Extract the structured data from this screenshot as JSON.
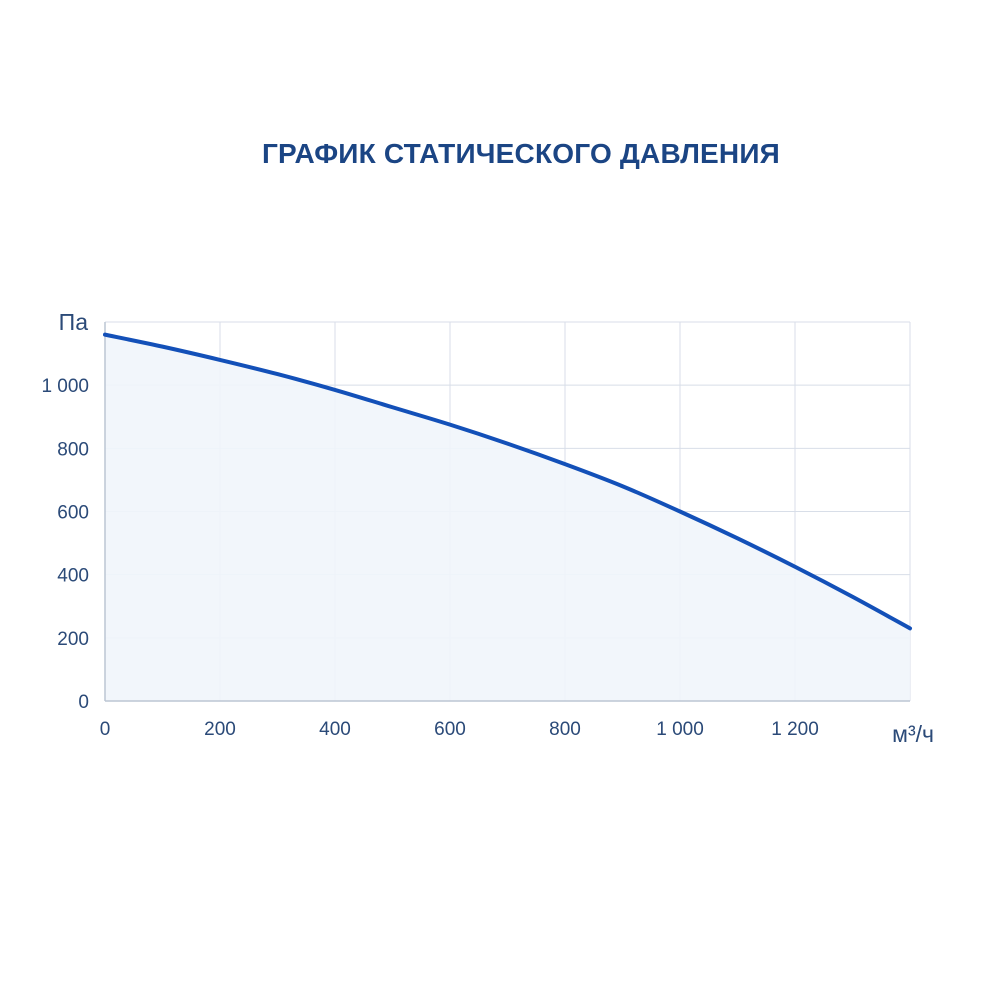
{
  "chart_data": {
    "type": "area",
    "title": "ГРАФИК СТАТИЧЕСКОГО ДАВЛЕНИЯ",
    "xlabel": "м³/ч",
    "ylabel": "Па",
    "xlim": [
      0,
      1400
    ],
    "ylim": [
      0,
      1200
    ],
    "x_ticks": [
      0,
      200,
      400,
      600,
      800,
      1000,
      1200
    ],
    "x_tick_labels": [
      "0",
      "200",
      "400",
      "600",
      "800",
      "1 000",
      "1 200"
    ],
    "y_ticks": [
      0,
      200,
      400,
      600,
      800,
      1000
    ],
    "y_tick_labels": [
      "0",
      "200",
      "400",
      "600",
      "800",
      "1 000"
    ],
    "grid": true,
    "series": [
      {
        "x": [
          0,
          100,
          200,
          300,
          400,
          500,
          600,
          700,
          800,
          900,
          1000,
          1100,
          1200,
          1300,
          1400
        ],
        "y": [
          1160,
          1122,
          1080,
          1035,
          985,
          930,
          875,
          815,
          750,
          680,
          600,
          515,
          425,
          330,
          230
        ]
      }
    ],
    "colors": {
      "line": "#1350b8",
      "fill": "#f1f5fb",
      "grid": "#d8dee8",
      "axis": "#bcc5d3"
    }
  }
}
